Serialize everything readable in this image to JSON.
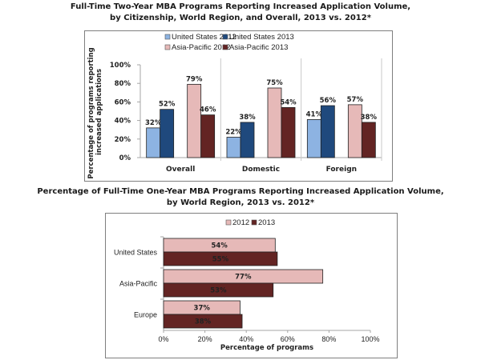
{
  "chart_data": [
    {
      "type": "bar",
      "title": "Full-Time Two-Year MBA Programs Reporting Increased Application Volume, by Citizenship, World Region, and Overall, 2013 vs. 2012*",
      "title_lines": [
        "Full-Time Two-Year MBA Programs Reporting Increased Application Volume,",
        "by Citizenship, World Region, and Overall, 2013 vs. 2012*"
      ],
      "xlabel": "",
      "ylabel": "Percentage of programs reporting increased applications",
      "ylabel_lines": [
        "Percentage of programs reporting",
        "increased applications"
      ],
      "ylim": [
        0,
        100
      ],
      "yticks": [
        "0%",
        "20%",
        "40%",
        "60%",
        "80%",
        "100%"
      ],
      "grid": false,
      "legend_position": "top",
      "categories": [
        "Overall",
        "Domestic",
        "Foreign"
      ],
      "series": [
        {
          "name": "United States 2012",
          "color": "#8db3e2",
          "values": [
            32,
            22,
            41
          ],
          "labels": [
            "32%",
            "22%",
            "41%"
          ]
        },
        {
          "name": "United States 2013",
          "color": "#1f497d",
          "values": [
            52,
            38,
            56
          ],
          "labels": [
            "52%",
            "38%",
            "56%"
          ]
        },
        {
          "name": "Asia-Pacific 2012",
          "color": "#e6b9b8",
          "values": [
            79,
            75,
            57
          ],
          "labels": [
            "79%",
            "75%",
            "57%"
          ]
        },
        {
          "name": "Asia-Pacific 2013",
          "color": "#632423",
          "values": [
            46,
            54,
            38
          ],
          "labels": [
            "46%",
            "54%",
            "38%"
          ]
        }
      ]
    },
    {
      "type": "bar",
      "orientation": "horizontal",
      "title": "Percentage of Full-Time One-Year MBA Programs Reporting Increased Application Volume, by World Region, 2013 vs. 2012*",
      "title_lines": [
        "Percentage of Full-Time One-Year MBA Programs Reporting Increased Application Volume,",
        "by World Region, 2013 vs. 2012*"
      ],
      "xlabel": "Percentage of programs",
      "ylabel": "",
      "xlim": [
        0,
        100
      ],
      "xticks": [
        "0%",
        "20%",
        "40%",
        "60%",
        "80%",
        "100%"
      ],
      "grid": false,
      "legend_position": "top",
      "categories": [
        "United States",
        "Asia-Pacific",
        "Europe"
      ],
      "series": [
        {
          "name": "2012",
          "color": "#e6b9b8",
          "values": [
            54,
            77,
            37
          ],
          "labels": [
            "54%",
            "77%",
            "37%"
          ]
        },
        {
          "name": "2013",
          "color": "#632423",
          "values": [
            55,
            53,
            38
          ],
          "labels": [
            "55%",
            "53%",
            "38%"
          ]
        }
      ]
    }
  ]
}
